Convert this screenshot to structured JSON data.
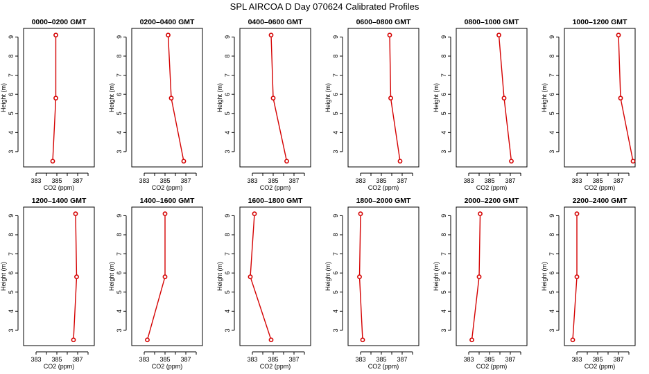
{
  "chart_data": {
    "title": "SPL AIRCOA D  Day 070624  Calibrated Profiles",
    "type": "line",
    "xlabel": "CO2 (ppm)",
    "ylabel": "Height (m)",
    "xlim": [
      381.8,
      388.6
    ],
    "ylim": [
      2.2,
      9.45
    ],
    "xticks": [
      383,
      384,
      385,
      386,
      387,
      388
    ],
    "xtick_labels": [
      "383",
      "",
      "385",
      "",
      "387",
      ""
    ],
    "yticks": [
      3,
      4,
      5,
      6,
      7,
      8,
      9
    ],
    "ytick_labels": [
      "3",
      "4",
      "5",
      "6",
      "7",
      "8",
      "9"
    ],
    "series_color": "#d40000",
    "panels": [
      {
        "title": "0000–0200 GMT",
        "x": [
          384.6,
          384.9,
          384.9
        ],
        "y": [
          2.5,
          5.8,
          9.1
        ]
      },
      {
        "title": "0200–0400 GMT",
        "x": [
          386.8,
          385.6,
          385.3
        ],
        "y": [
          2.5,
          5.8,
          9.1
        ]
      },
      {
        "title": "0400–0600 GMT",
        "x": [
          386.3,
          385.0,
          384.8
        ],
        "y": [
          2.5,
          5.8,
          9.1
        ]
      },
      {
        "title": "0600–0800 GMT",
        "x": [
          386.8,
          385.9,
          385.8
        ],
        "y": [
          2.5,
          5.8,
          9.1
        ]
      },
      {
        "title": "0800–1000 GMT",
        "x": [
          387.1,
          386.4,
          385.9
        ],
        "y": [
          2.5,
          5.8,
          9.1
        ]
      },
      {
        "title": "1000–1200 GMT",
        "x": [
          388.4,
          387.2,
          387.0
        ],
        "y": [
          2.5,
          5.8,
          9.1
        ]
      },
      {
        "title": "1200–1400 GMT",
        "x": [
          386.6,
          386.9,
          386.8
        ],
        "y": [
          2.5,
          5.8,
          9.1
        ]
      },
      {
        "title": "1400–1600 GMT",
        "x": [
          383.3,
          385.0,
          385.0
        ],
        "y": [
          2.5,
          5.8,
          9.1
        ]
      },
      {
        "title": "1600–1800 GMT",
        "x": [
          384.8,
          382.8,
          383.2
        ],
        "y": [
          2.5,
          5.8,
          9.1
        ]
      },
      {
        "title": "1800–2000 GMT",
        "x": [
          383.2,
          382.9,
          383.0
        ],
        "y": [
          2.5,
          5.8,
          9.1
        ]
      },
      {
        "title": "2000–2200 GMT",
        "x": [
          383.3,
          384.0,
          384.1
        ],
        "y": [
          2.5,
          5.8,
          9.1
        ]
      },
      {
        "title": "2200–2400 GMT",
        "x": [
          382.6,
          383.0,
          383.0
        ],
        "y": [
          2.5,
          5.8,
          9.1
        ]
      }
    ]
  }
}
